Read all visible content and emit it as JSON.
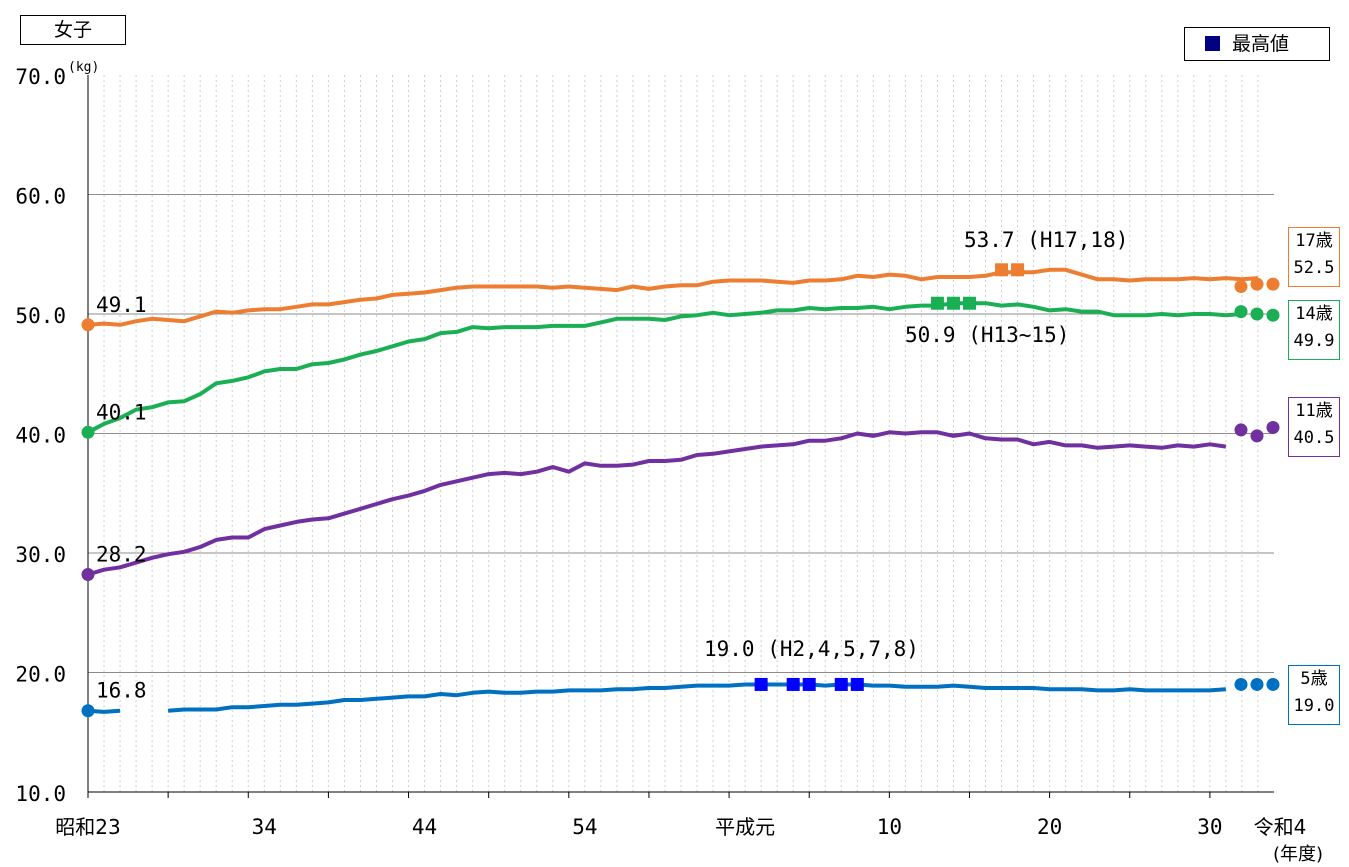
{
  "panel_label": "女子",
  "legend": {
    "label": "最高値",
    "marker_color": "#000080"
  },
  "y_unit": "(kg)",
  "x_unit": "(年度)",
  "chart_data": {
    "type": "line",
    "title": "",
    "xlabel": "(年度)",
    "ylabel": "(kg)",
    "ylim": [
      10.0,
      70.0
    ],
    "yticks": [
      10,
      20,
      30,
      40,
      50,
      60,
      70
    ],
    "ytick_labels": [
      "10.0",
      "20.0",
      "30.0",
      "40.0",
      "50.0",
      "60.0",
      "70.0"
    ],
    "xlim": [
      1948,
      2022
    ],
    "x_start_year": 1948,
    "xticks": [
      {
        "year": 1948,
        "label": "昭和23"
      },
      {
        "year": 1959,
        "label": "34"
      },
      {
        "year": 1969,
        "label": "44"
      },
      {
        "year": 1979,
        "label": "54"
      },
      {
        "year": 1989,
        "label": "平成元"
      },
      {
        "year": 1998,
        "label": "10"
      },
      {
        "year": 2008,
        "label": "20"
      },
      {
        "year": 2018,
        "label": "30"
      },
      {
        "year": 2022,
        "label": "令和4"
      }
    ],
    "grid": true,
    "series": [
      {
        "name": "17歳",
        "color": "#ED7D31",
        "box_value": "52.5",
        "first_label": "49.1",
        "max_label": "53.7 (H17,18)",
        "max_years": [
          2005,
          2006
        ],
        "max_value": 53.7,
        "values": [
          49.1,
          49.2,
          49.1,
          49.4,
          49.6,
          49.5,
          49.4,
          49.8,
          50.2,
          50.1,
          50.3,
          50.4,
          50.4,
          50.6,
          50.8,
          50.8,
          51.0,
          51.2,
          51.3,
          51.6,
          51.7,
          51.8,
          52.0,
          52.2,
          52.3,
          52.3,
          52.3,
          52.3,
          52.3,
          52.2,
          52.3,
          52.2,
          52.1,
          52.0,
          52.3,
          52.1,
          52.3,
          52.4,
          52.4,
          52.7,
          52.8,
          52.8,
          52.8,
          52.7,
          52.6,
          52.8,
          52.8,
          52.9,
          53.2,
          53.1,
          53.3,
          53.2,
          52.9,
          53.1,
          53.1,
          53.1,
          53.2,
          53.5,
          53.5,
          53.5,
          53.7,
          53.7,
          53.3,
          52.9,
          52.9,
          52.8,
          52.9,
          52.9,
          52.9,
          53.0,
          52.9,
          53.0,
          52.9,
          53.0
        ],
        "recent": [
          52.3,
          52.5,
          52.5
        ]
      },
      {
        "name": "14歳",
        "color": "#1AAF54",
        "box_value": "49.9",
        "first_label": "40.1",
        "max_label": "50.9 (H13~15)",
        "max_years": [
          2001,
          2002,
          2003
        ],
        "max_value": 50.9,
        "values": [
          40.1,
          40.8,
          41.3,
          42.0,
          42.2,
          42.6,
          42.7,
          43.3,
          44.2,
          44.4,
          44.7,
          45.2,
          45.4,
          45.4,
          45.8,
          45.9,
          46.2,
          46.6,
          46.9,
          47.3,
          47.7,
          47.9,
          48.4,
          48.5,
          48.9,
          48.8,
          48.9,
          48.9,
          48.9,
          49.0,
          49.0,
          49.0,
          49.3,
          49.6,
          49.6,
          49.6,
          49.5,
          49.8,
          49.9,
          50.1,
          49.9,
          50.0,
          50.1,
          50.3,
          50.3,
          50.5,
          50.4,
          50.5,
          50.5,
          50.6,
          50.4,
          50.6,
          50.7,
          50.7,
          50.9,
          50.9,
          50.9,
          50.7,
          50.8,
          50.6,
          50.3,
          50.4,
          50.2,
          50.2,
          49.9,
          49.9,
          49.9,
          50.0,
          49.9,
          50.0,
          50.0,
          49.9,
          50.0
        ],
        "recent": [
          50.2,
          50.0,
          49.9
        ]
      },
      {
        "name": "11歳",
        "color": "#7030A0",
        "box_value": "40.5",
        "first_label": "28.2",
        "values": [
          28.2,
          28.6,
          28.8,
          29.2,
          29.6,
          29.9,
          30.1,
          30.5,
          31.1,
          31.3,
          31.3,
          32.0,
          32.3,
          32.6,
          32.8,
          32.9,
          33.3,
          33.7,
          34.1,
          34.5,
          34.8,
          35.2,
          35.7,
          36.0,
          36.3,
          36.6,
          36.7,
          36.6,
          36.8,
          37.2,
          36.8,
          37.5,
          37.3,
          37.3,
          37.4,
          37.7,
          37.7,
          37.8,
          38.2,
          38.3,
          38.5,
          38.7,
          38.9,
          39.0,
          39.1,
          39.4,
          39.4,
          39.6,
          40.0,
          39.8,
          40.1,
          40.0,
          40.1,
          40.1,
          39.8,
          40.0,
          39.6,
          39.5,
          39.5,
          39.1,
          39.3,
          39.0,
          39.0,
          38.8,
          38.9,
          39.0,
          38.9,
          38.8,
          39.0,
          38.9,
          39.1,
          38.9
        ],
        "recent": [
          40.3,
          39.8,
          40.5
        ]
      },
      {
        "name": "5歳",
        "color": "#0070C0",
        "box_value": "19.0",
        "first_label": "16.8",
        "max_label": "19.0 (H2,4,5,7,8)",
        "max_years": [
          1990,
          1992,
          1993,
          1995,
          1996
        ],
        "max_value": 19.0,
        "gap_years": [
          1951,
          1952
        ],
        "values": [
          16.8,
          16.7,
          16.8,
          null,
          null,
          16.8,
          16.9,
          16.9,
          16.9,
          17.1,
          17.1,
          17.2,
          17.3,
          17.3,
          17.4,
          17.5,
          17.7,
          17.7,
          17.8,
          17.9,
          18.0,
          18.0,
          18.2,
          18.1,
          18.3,
          18.4,
          18.3,
          18.3,
          18.4,
          18.4,
          18.5,
          18.5,
          18.5,
          18.6,
          18.6,
          18.7,
          18.7,
          18.8,
          18.9,
          18.9,
          18.9,
          19.0,
          19.0,
          19.0,
          19.0,
          19.0,
          18.9,
          19.0,
          19.0,
          18.9,
          18.9,
          18.8,
          18.8,
          18.8,
          18.9,
          18.8,
          18.7,
          18.7,
          18.7,
          18.7,
          18.6,
          18.6,
          18.6,
          18.5,
          18.5,
          18.6,
          18.5,
          18.5,
          18.5,
          18.5,
          18.5,
          18.6
        ],
        "recent": [
          19.0,
          19.0,
          19.0
        ]
      }
    ]
  }
}
